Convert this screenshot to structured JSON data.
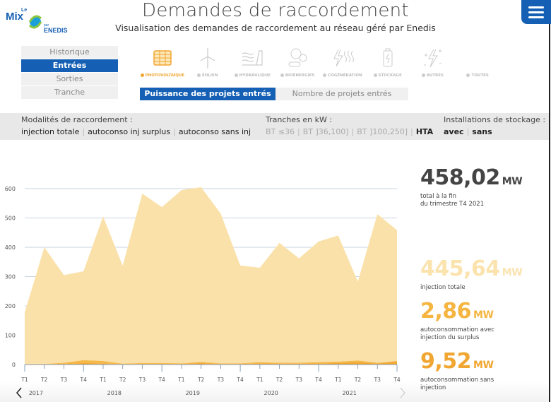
{
  "header": {
    "title": "Demandes de raccordement",
    "subtitle": "Visualisation des demandes de raccordement au réseau géré par Enedis",
    "logo_text": "Le Mix par Enedis"
  },
  "menu": {
    "items": [
      {
        "label": "Historique",
        "active": false
      },
      {
        "label": "Entrées",
        "active": true
      },
      {
        "label": "Sorties",
        "active": false
      },
      {
        "label": "Tranche",
        "active": false
      }
    ]
  },
  "energies": [
    {
      "label": "PHOTOVOLTAÏQUE",
      "icon": "solar-panel-icon",
      "active": true
    },
    {
      "label": "ÉOLIEN",
      "icon": "wind-turbine-icon",
      "active": false
    },
    {
      "label": "HYDRAULIQUE",
      "icon": "dam-icon",
      "active": false
    },
    {
      "label": "BIOÉNERGIES",
      "icon": "biomass-icon",
      "active": false
    },
    {
      "label": "COGÉNÉRATION",
      "icon": "heat-icon",
      "active": false
    },
    {
      "label": "STOCKAGE",
      "icon": "battery-icon",
      "active": false
    },
    {
      "label": "AUTRES",
      "icon": "sparkle-bolt-icon",
      "active": false
    },
    {
      "label": "TOUTES",
      "icon": "",
      "active": false
    }
  ],
  "tabs": [
    {
      "label": "Puissance des projets entrés",
      "active": true
    },
    {
      "label": "Nombre de projets entrés",
      "active": false
    }
  ],
  "filters": {
    "modalites": {
      "label": "Modalités de raccordement :",
      "options": [
        "injection totale",
        "autoconso inj surplus",
        "autoconso sans inj"
      ]
    },
    "tranches": {
      "label": "Tranches en kW :",
      "options": [
        "BT ≤36",
        "BT ]36,100]",
        "BT ]100,250]",
        "HTA"
      ]
    },
    "stockage": {
      "label": "Installations de stockage :",
      "options": [
        "avec",
        "sans"
      ]
    }
  },
  "kpis": {
    "total": {
      "value": "458,02",
      "unit": "MW",
      "caption1": "total à la fin",
      "caption2": "du trimestre T4 2021"
    },
    "injection": {
      "value": "445,64",
      "unit": "MW",
      "caption1": "injection totale",
      "caption2": ""
    },
    "surplus": {
      "value": "2,86",
      "unit": "MW",
      "caption1": "autoconsommation avec",
      "caption2": "injection du surplus"
    },
    "sans_inj": {
      "value": "9,52",
      "unit": "MW",
      "caption1": "autoconsommation sans",
      "caption2": "injection"
    }
  },
  "colors": {
    "accent": "#1560b4",
    "injection": "#fae1a9",
    "surplus": "#f5b94a",
    "sans_inj": "#f0a630"
  },
  "chart_data": {
    "type": "area",
    "stacked": true,
    "categories": [
      "T1",
      "T2",
      "T3",
      "T4",
      "T1",
      "T2",
      "T3",
      "T4",
      "T1",
      "T2",
      "T3",
      "T4",
      "T1",
      "T2",
      "T3",
      "T4",
      "T1",
      "T2",
      "T3",
      "T4"
    ],
    "years": [
      "2017",
      "2018",
      "2019",
      "2020",
      "2021"
    ],
    "ylim": [
      0,
      600
    ],
    "yticks": [
      0,
      100,
      200,
      300,
      400,
      500,
      600
    ],
    "grid": true,
    "series": [
      {
        "key": "sans_inj",
        "color": "#f0a630",
        "values": [
          1,
          1,
          3,
          5,
          4,
          1,
          2,
          2,
          2,
          5,
          2,
          2,
          4,
          3,
          3,
          4,
          5,
          8,
          3,
          9.52
        ]
      },
      {
        "key": "surplus",
        "color": "#f5b94a",
        "values": [
          1,
          1,
          3,
          10,
          8,
          2,
          3,
          3,
          2,
          4,
          2,
          2,
          4,
          3,
          3,
          4,
          5,
          6,
          3,
          2.86
        ]
      },
      {
        "key": "injection",
        "color": "#fae1a9",
        "values": [
          176,
          398,
          299,
          303,
          493,
          334,
          578,
          532,
          591,
          596,
          511,
          334,
          322,
          409,
          356,
          412,
          430,
          269,
          507,
          445.64
        ]
      }
    ]
  }
}
